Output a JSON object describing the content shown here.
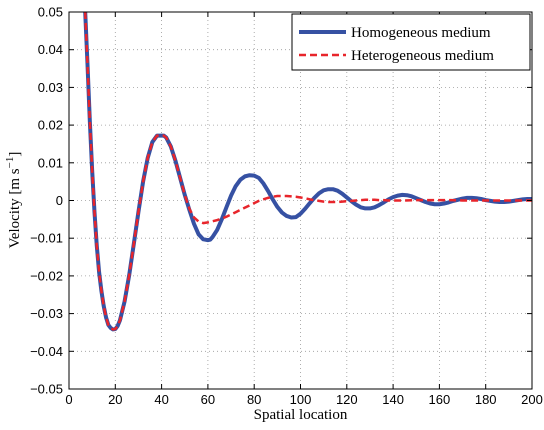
{
  "chart_data": {
    "type": "line",
    "xlabel": "Spatial location",
    "ylabel": "Velocity [m s",
    "ylabel_sup": "−1",
    "ylabel_close": "]",
    "xlim": [
      0,
      200
    ],
    "ylim": [
      -0.05,
      0.05
    ],
    "x_ticks": [
      0,
      20,
      40,
      60,
      80,
      100,
      120,
      140,
      160,
      180,
      200
    ],
    "x_tick_labels": [
      "0",
      "20",
      "40",
      "60",
      "80",
      "100",
      "120",
      "140",
      "160",
      "180",
      "200"
    ],
    "y_ticks": [
      -0.05,
      -0.04,
      -0.03,
      -0.02,
      -0.01,
      0,
      0.01,
      0.02,
      0.03,
      0.04,
      0.05
    ],
    "y_tick_labels": [
      "−0.05",
      "−0.04",
      "−0.03",
      "−0.02",
      "−0.01",
      "0",
      "0.01",
      "0.02",
      "0.03",
      "0.04",
      "0.05"
    ],
    "grid": true,
    "legend_position": "top-right",
    "series": [
      {
        "name": "Homogeneous medium",
        "color": "#3651a3",
        "style": "solid",
        "points": [
          [
            7,
            0.05
          ],
          [
            8,
            0.036
          ],
          [
            9,
            0.021
          ],
          [
            10,
            0.008
          ],
          [
            11,
            -0.003
          ],
          [
            12,
            -0.012
          ],
          [
            13,
            -0.019
          ],
          [
            14,
            -0.024
          ],
          [
            15,
            -0.028
          ],
          [
            16,
            -0.031
          ],
          [
            17,
            -0.033
          ],
          [
            18,
            -0.0338
          ],
          [
            19,
            -0.0342
          ],
          [
            20,
            -0.0341
          ],
          [
            21,
            -0.0333
          ],
          [
            22,
            -0.0318
          ],
          [
            24,
            -0.0268
          ],
          [
            26,
            -0.0198
          ],
          [
            28,
            -0.0115
          ],
          [
            30,
            -0.003
          ],
          [
            32,
            0.005
          ],
          [
            34,
            0.0113
          ],
          [
            36,
            0.0155
          ],
          [
            38,
            0.0172
          ],
          [
            40,
            0.0172
          ],
          [
            41,
            0.0172
          ],
          [
            42,
            0.0167
          ],
          [
            44,
            0.0143
          ],
          [
            46,
            0.0105
          ],
          [
            48,
            0.006
          ],
          [
            50,
            0.0015
          ],
          [
            52,
            -0.0025
          ],
          [
            54,
            -0.0062
          ],
          [
            56,
            -0.009
          ],
          [
            58,
            -0.0103
          ],
          [
            60,
            -0.0105
          ],
          [
            61,
            -0.0104
          ],
          [
            62,
            -0.0097
          ],
          [
            64,
            -0.0078
          ],
          [
            66,
            -0.005
          ],
          [
            68,
            -0.0018
          ],
          [
            70,
            0.0013
          ],
          [
            72,
            0.0038
          ],
          [
            74,
            0.0055
          ],
          [
            76,
            0.0064
          ],
          [
            78,
            0.0067
          ],
          [
            80,
            0.0066
          ],
          [
            82,
            0.006
          ],
          [
            84,
            0.0045
          ],
          [
            86,
            0.0025
          ],
          [
            88,
            0.0003
          ],
          [
            90,
            -0.0017
          ],
          [
            92,
            -0.0032
          ],
          [
            94,
            -0.0041
          ],
          [
            96,
            -0.0045
          ],
          [
            98,
            -0.0044
          ],
          [
            100,
            -0.0035
          ],
          [
            102,
            -0.0022
          ],
          [
            104,
            -0.0007
          ],
          [
            106,
            0.0007
          ],
          [
            108,
            0.0019
          ],
          [
            110,
            0.0027
          ],
          [
            112,
            0.003
          ],
          [
            114,
            0.003
          ],
          [
            116,
            0.0026
          ],
          [
            118,
            0.0018
          ],
          [
            120,
            0.0008
          ],
          [
            122,
            -0.0002
          ],
          [
            124,
            -0.0011
          ],
          [
            126,
            -0.0018
          ],
          [
            128,
            -0.0021
          ],
          [
            130,
            -0.0021
          ],
          [
            132,
            -0.0018
          ],
          [
            134,
            -0.0012
          ],
          [
            136,
            -0.0005
          ],
          [
            138,
            0.0003
          ],
          [
            140,
            0.0009
          ],
          [
            142,
            0.0013
          ],
          [
            144,
            0.0015
          ],
          [
            146,
            0.0014
          ],
          [
            148,
            0.0011
          ],
          [
            150,
            0.0006
          ],
          [
            152,
            0.0001
          ],
          [
            154,
            -0.0004
          ],
          [
            156,
            -0.0008
          ],
          [
            158,
            -0.001
          ],
          [
            160,
            -0.001
          ],
          [
            162,
            -0.0008
          ],
          [
            164,
            -0.0005
          ],
          [
            166,
            -0.0001
          ],
          [
            168,
            0.0002
          ],
          [
            170,
            0.0005
          ],
          [
            172,
            0.0007
          ],
          [
            174,
            0.0007
          ],
          [
            176,
            0.0006
          ],
          [
            178,
            0.0004
          ],
          [
            180,
            0.0001
          ],
          [
            182,
            -0.0001
          ],
          [
            184,
            -0.0003
          ],
          [
            186,
            -0.0004
          ],
          [
            188,
            -0.0004
          ],
          [
            190,
            -0.0003
          ],
          [
            192,
            -0.0001
          ],
          [
            194,
            0.0001
          ],
          [
            196,
            0.0003
          ],
          [
            198,
            0.0004
          ],
          [
            200,
            0.0004
          ]
        ]
      },
      {
        "name": "Heterogeneous medium",
        "color": "#e8252b",
        "style": "dashed",
        "points": [
          [
            7,
            0.05
          ],
          [
            8,
            0.036
          ],
          [
            9,
            0.021
          ],
          [
            10,
            0.008
          ],
          [
            11,
            -0.003
          ],
          [
            12,
            -0.012
          ],
          [
            13,
            -0.019
          ],
          [
            14,
            -0.024
          ],
          [
            15,
            -0.028
          ],
          [
            16,
            -0.031
          ],
          [
            17,
            -0.033
          ],
          [
            18,
            -0.0338
          ],
          [
            19,
            -0.0342
          ],
          [
            20,
            -0.0341
          ],
          [
            21,
            -0.0333
          ],
          [
            22,
            -0.0318
          ],
          [
            24,
            -0.0268
          ],
          [
            26,
            -0.0198
          ],
          [
            28,
            -0.0115
          ],
          [
            30,
            -0.003
          ],
          [
            32,
            0.005
          ],
          [
            34,
            0.0113
          ],
          [
            36,
            0.0155
          ],
          [
            38,
            0.0172
          ],
          [
            40,
            0.0172
          ],
          [
            41,
            0.0172
          ],
          [
            42,
            0.0167
          ],
          [
            44,
            0.0143
          ],
          [
            46,
            0.0105
          ],
          [
            48,
            0.006
          ],
          [
            50,
            0.0015
          ],
          [
            52,
            -0.0022
          ],
          [
            54,
            -0.0045
          ],
          [
            56,
            -0.0056
          ],
          [
            58,
            -0.006
          ],
          [
            60,
            -0.0058
          ],
          [
            62,
            -0.0055
          ],
          [
            64,
            -0.0052
          ],
          [
            66,
            -0.0048
          ],
          [
            68,
            -0.0043
          ],
          [
            70,
            -0.0037
          ],
          [
            72,
            -0.0031
          ],
          [
            74,
            -0.0025
          ],
          [
            76,
            -0.0019
          ],
          [
            78,
            -0.0013
          ],
          [
            80,
            -0.0007
          ],
          [
            82,
            -0.0001
          ],
          [
            84,
            0.0003
          ],
          [
            86,
            0.0007
          ],
          [
            88,
            0.001
          ],
          [
            90,
            0.0012
          ],
          [
            92,
            0.0012
          ],
          [
            94,
            0.0012
          ],
          [
            96,
            0.0011
          ],
          [
            98,
            0.001
          ],
          [
            100,
            0.0008
          ],
          [
            102,
            0.0006
          ],
          [
            104,
            0.0003
          ],
          [
            106,
            0.0001
          ],
          [
            108,
            -0.0001
          ],
          [
            110,
            -0.0003
          ],
          [
            112,
            -0.0004
          ],
          [
            114,
            -0.0004
          ],
          [
            116,
            -0.0004
          ],
          [
            118,
            -0.0003
          ],
          [
            120,
            -0.0002
          ],
          [
            122,
            -0.0001
          ],
          [
            124,
            0.0
          ],
          [
            126,
            0.0001
          ],
          [
            128,
            0.0002
          ],
          [
            130,
            0.0002
          ],
          [
            132,
            0.0002
          ],
          [
            134,
            0.0001
          ],
          [
            136,
            0.0001
          ],
          [
            138,
            0.0
          ],
          [
            140,
            0.0
          ],
          [
            145,
            0.0
          ],
          [
            150,
            0.0001
          ],
          [
            155,
            0.0001
          ],
          [
            160,
            0.0001
          ],
          [
            165,
            0.0001
          ],
          [
            170,
            0.0
          ],
          [
            175,
            0.0
          ],
          [
            180,
            0.0
          ],
          [
            185,
            0.0
          ],
          [
            190,
            0.0
          ],
          [
            195,
            0.0
          ],
          [
            200,
            0.0
          ]
        ]
      }
    ]
  }
}
